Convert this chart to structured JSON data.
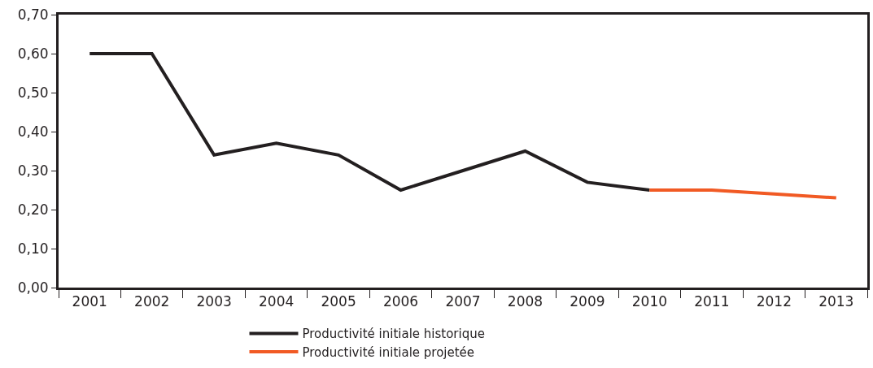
{
  "chart_data": {
    "type": "line",
    "categories": [
      "2001",
      "2002",
      "2003",
      "2004",
      "2005",
      "2006",
      "2007",
      "2008",
      "2009",
      "2010",
      "2011",
      "2012",
      "2013"
    ],
    "series": [
      {
        "name": "Productivité initiale historique",
        "color": "#231f20",
        "values": [
          0.6,
          0.6,
          0.34,
          0.37,
          0.34,
          0.25,
          0.3,
          0.35,
          0.27,
          0.25,
          null,
          null,
          null
        ]
      },
      {
        "name": "Productivité initiale projetée",
        "color": "#f15a24",
        "values": [
          null,
          null,
          null,
          null,
          null,
          null,
          null,
          null,
          null,
          0.25,
          0.25,
          0.24,
          0.23
        ]
      }
    ],
    "ylim": [
      0,
      0.7
    ],
    "yticks": [
      {
        "value": 0,
        "label": "0,00"
      },
      {
        "value": 0.1,
        "label": "0,10"
      },
      {
        "value": 0.2,
        "label": "0,20"
      },
      {
        "value": 0.3,
        "label": "0,30"
      },
      {
        "value": 0.4,
        "label": "0,40"
      },
      {
        "value": 0.5,
        "label": "0,50"
      },
      {
        "value": 0.6,
        "label": "0,60"
      },
      {
        "value": 0.7,
        "label": "0,70"
      }
    ],
    "legend": "bottom",
    "marker": "none",
    "line_style": "solid"
  }
}
